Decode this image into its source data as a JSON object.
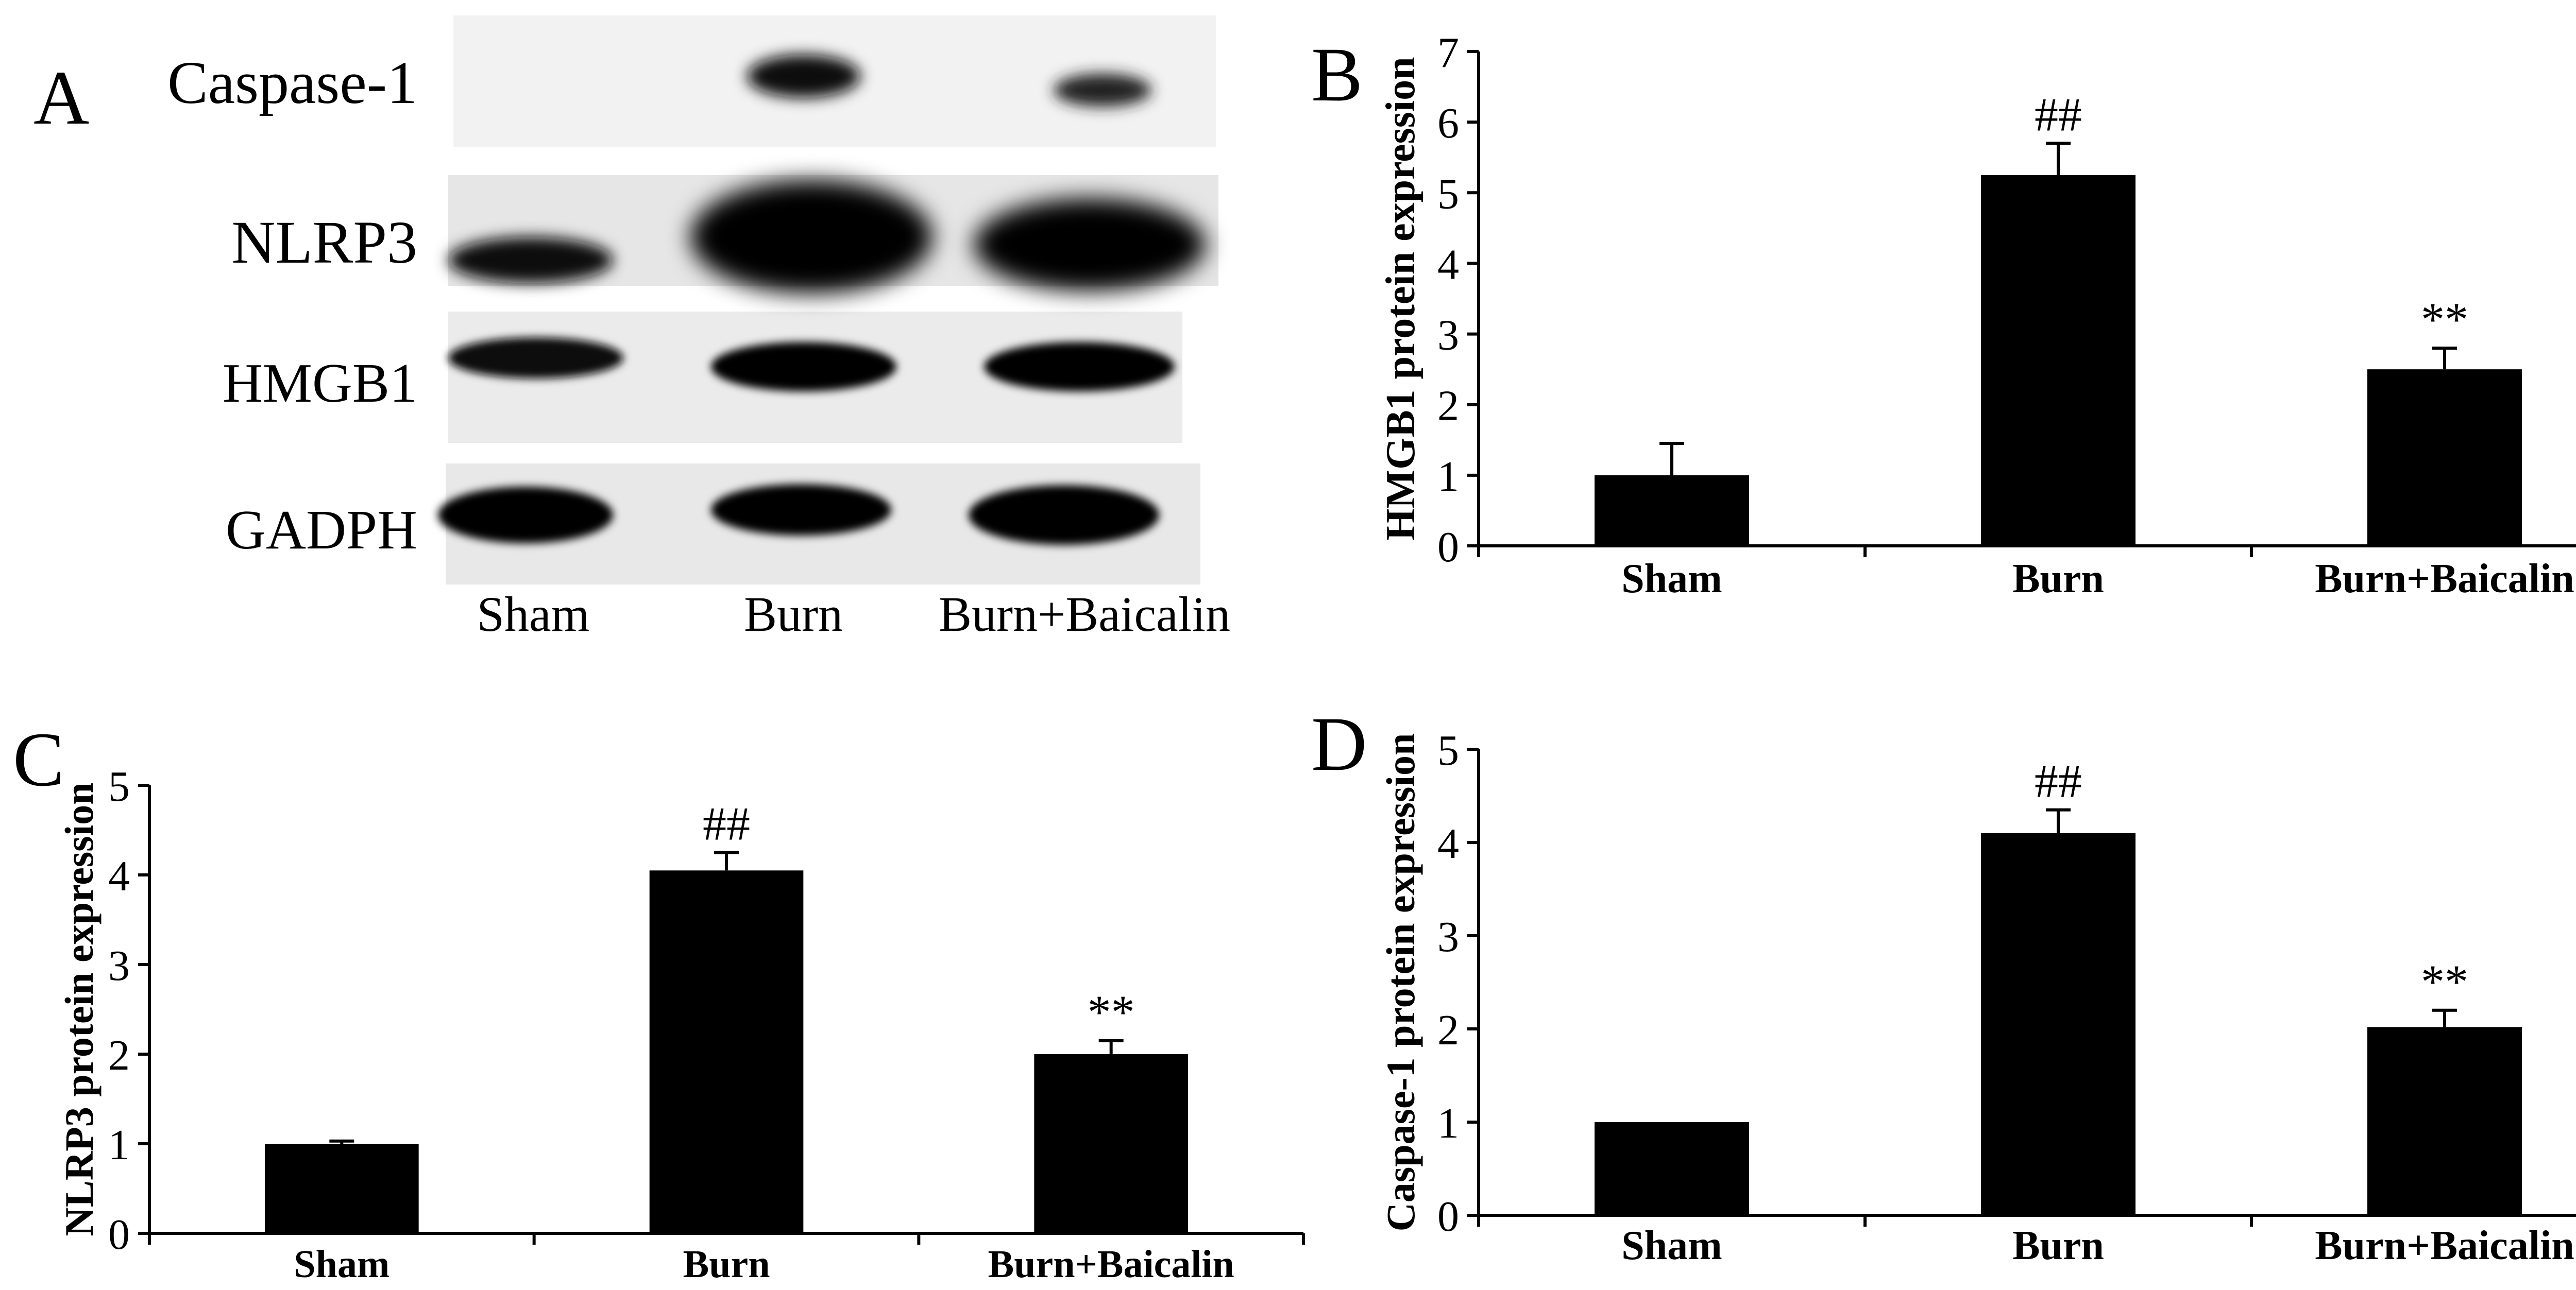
{
  "panels": {
    "A": {
      "letter": "A",
      "bands": [
        "Caspase-1",
        "NLRP3",
        "HMGB1",
        "GADPH"
      ],
      "lanes": [
        "Sham",
        "Burn",
        "Burn+Baicalin"
      ]
    },
    "B": {
      "letter": "B"
    },
    "C": {
      "letter": "C"
    },
    "D": {
      "letter": "D"
    }
  },
  "chart_data": [
    {
      "panel": "B",
      "type": "bar",
      "categories": [
        "Sham",
        "Burn",
        "Burn+Baicalin"
      ],
      "values": [
        1.0,
        5.25,
        2.5
      ],
      "errors": [
        0.45,
        0.45,
        0.3
      ],
      "annotations": [
        "",
        "##",
        "**"
      ],
      "ylabel": "HMGB1 protein expression",
      "xlabel": "",
      "ylim": [
        0,
        7
      ],
      "yticks": [
        0,
        1,
        2,
        3,
        4,
        5,
        6,
        7
      ],
      "bar_color": "#000000"
    },
    {
      "panel": "C",
      "type": "bar",
      "categories": [
        "Sham",
        "Burn",
        "Burn+Baicalin"
      ],
      "values": [
        1.0,
        4.05,
        2.0
      ],
      "errors": [
        0.03,
        0.2,
        0.15
      ],
      "annotations": [
        "",
        "##",
        "**"
      ],
      "ylabel": "NLRP3 protein expression",
      "xlabel": "",
      "ylim": [
        0,
        5
      ],
      "yticks": [
        0,
        1,
        2,
        3,
        4,
        5
      ],
      "bar_color": "#000000"
    },
    {
      "panel": "D",
      "type": "bar",
      "categories": [
        "Sham",
        "Burn",
        "Burn+Baicalin"
      ],
      "values": [
        1.0,
        4.1,
        2.02
      ],
      "errors": [
        0.0,
        0.25,
        0.18
      ],
      "annotations": [
        "",
        "##",
        "**"
      ],
      "ylabel": "Caspase-1 protein expression",
      "xlabel": "",
      "ylim": [
        0,
        5
      ],
      "yticks": [
        0,
        1,
        2,
        3,
        4,
        5
      ],
      "bar_color": "#000000"
    }
  ]
}
